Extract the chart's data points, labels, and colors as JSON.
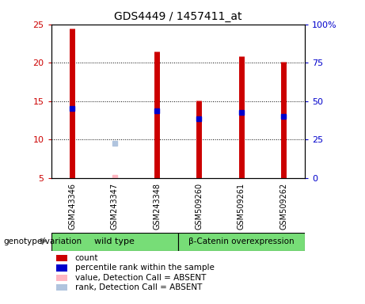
{
  "title": "GDS4449 / 1457411_at",
  "samples": [
    "GSM243346",
    "GSM243347",
    "GSM243348",
    "GSM509260",
    "GSM509261",
    "GSM509262"
  ],
  "red_values": [
    24.5,
    5.2,
    21.5,
    15.1,
    20.8,
    20.1
  ],
  "blue_values": [
    14.0,
    null,
    13.7,
    12.7,
    13.5,
    13.0
  ],
  "pink_value": [
    null,
    5.1,
    null,
    null,
    null,
    null
  ],
  "lavender_value": [
    null,
    9.5,
    null,
    null,
    null,
    null
  ],
  "ylim_left": [
    5,
    25
  ],
  "ylim_right": [
    0,
    100
  ],
  "yticks_left": [
    5,
    10,
    15,
    20,
    25
  ],
  "yticks_right": [
    0,
    25,
    50,
    75,
    100
  ],
  "ytick_labels_right": [
    "0",
    "25",
    "50",
    "75",
    "100%"
  ],
  "legend_items": [
    {
      "color": "#cc0000",
      "label": "count"
    },
    {
      "color": "#0000cc",
      "label": "percentile rank within the sample"
    },
    {
      "color": "#ffb6c1",
      "label": "value, Detection Call = ABSENT"
    },
    {
      "color": "#b0c4de",
      "label": "rank, Detection Call = ABSENT"
    }
  ],
  "red_color": "#cc0000",
  "blue_color": "#0000cc",
  "pink_color": "#ffb6c1",
  "lavender_color": "#b0c4de",
  "label_color_left": "#cc0000",
  "label_color_right": "#0000cc",
  "background_color": "#ffffff",
  "plot_bg": "#ffffff",
  "group_box_color": "#d0d0d0",
  "green_color": "#77dd77",
  "genotype_label": "genotype/variation"
}
